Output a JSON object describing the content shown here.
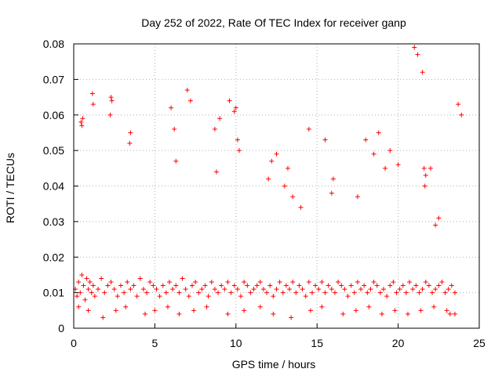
{
  "chart_data": {
    "type": "scatter",
    "title": "Day 252 of 2022, Rate Of TEC Index for receiver ganp",
    "xlabel": "GPS time / hours",
    "ylabel": "ROTI / TECUs",
    "xlim": [
      0,
      25
    ],
    "ylim": [
      0,
      0.08
    ],
    "xticks": [
      "0",
      "5",
      "10",
      "15",
      "20",
      "25"
    ],
    "yticks": [
      "0",
      "0.01",
      "0.02",
      "0.03",
      "0.04",
      "0.05",
      "0.06",
      "0.07",
      "0.08"
    ],
    "grid": true,
    "marker": "+",
    "color": "#ff0000",
    "series": [
      {
        "x": [
          0.1,
          0.2,
          0.3,
          0.4,
          0.5,
          0.6,
          0.7,
          0.8,
          0.9,
          1.0,
          1.1,
          1.2,
          1.3,
          1.5,
          1.7,
          1.9,
          2.1,
          2.3,
          2.5,
          2.7,
          2.9,
          3.1,
          3.3,
          3.5,
          3.7,
          3.9,
          4.1,
          4.3,
          4.5,
          4.7,
          4.9,
          5.1,
          5.3,
          5.5,
          5.7,
          5.9,
          6.1,
          6.3,
          6.5,
          6.7,
          6.9,
          7.1,
          7.3,
          7.5,
          7.7,
          7.9,
          8.1,
          8.3,
          8.5,
          8.7,
          8.9,
          9.1,
          9.3,
          9.5,
          9.7,
          9.9,
          10.1,
          10.3,
          10.5,
          10.7,
          10.9,
          11.1,
          11.3,
          11.5,
          11.7,
          11.9,
          12.1,
          12.3,
          12.5,
          12.7,
          12.9,
          13.1,
          13.3,
          13.5,
          13.7,
          13.9,
          14.1,
          14.3,
          14.5,
          14.7,
          14.9,
          15.1,
          15.3,
          15.5,
          15.7,
          15.9,
          16.1,
          16.3,
          16.5,
          16.7,
          16.9,
          17.1,
          17.3,
          17.5,
          17.7,
          17.9,
          18.1,
          18.3,
          18.5,
          18.7,
          18.9,
          19.1,
          19.3,
          19.5,
          19.7,
          19.9,
          20.1,
          20.3,
          20.5,
          20.7,
          20.9,
          21.1,
          21.3,
          21.5,
          21.7,
          21.9,
          22.1,
          22.3,
          22.5,
          22.7,
          22.9,
          23.1,
          23.3,
          23.5,
          23.7,
          23.9,
          0.5,
          0.55,
          0.45,
          1.15,
          1.2,
          2.3,
          2.35,
          2.25,
          3.45,
          3.5,
          6.0,
          6.2,
          6.3,
          7.0,
          7.2,
          8.7,
          8.8,
          9.0,
          9.6,
          9.9,
          10.0,
          10.1,
          10.2,
          12.0,
          12.2,
          12.5,
          13.0,
          13.2,
          13.5,
          14.0,
          14.5,
          15.5,
          15.9,
          16.0,
          17.5,
          18.0,
          18.5,
          18.8,
          19.2,
          19.5,
          20.0,
          21.0,
          21.2,
          21.5,
          21.6,
          21.65,
          21.7,
          22.0,
          22.3,
          22.5,
          23.0,
          23.5,
          0.3,
          0.9,
          1.8,
          2.6,
          3.2,
          4.4,
          5.0,
          5.8,
          6.5,
          7.4,
          8.2,
          9.5,
          10.5,
          11.5,
          12.3,
          13.4,
          14.6,
          15.3,
          16.6,
          17.4,
          18.2,
          19.0,
          19.8,
          20.6,
          21.4,
          22.2,
          23.2
        ],
        "y": [
          0.011,
          0.009,
          0.013,
          0.01,
          0.015,
          0.012,
          0.008,
          0.014,
          0.011,
          0.013,
          0.01,
          0.012,
          0.009,
          0.011,
          0.014,
          0.01,
          0.012,
          0.013,
          0.011,
          0.009,
          0.012,
          0.01,
          0.013,
          0.011,
          0.012,
          0.009,
          0.014,
          0.011,
          0.01,
          0.013,
          0.012,
          0.011,
          0.009,
          0.012,
          0.01,
          0.013,
          0.011,
          0.012,
          0.01,
          0.014,
          0.011,
          0.009,
          0.012,
          0.013,
          0.01,
          0.011,
          0.012,
          0.009,
          0.013,
          0.011,
          0.01,
          0.012,
          0.011,
          0.013,
          0.01,
          0.012,
          0.011,
          0.009,
          0.013,
          0.012,
          0.01,
          0.011,
          0.012,
          0.013,
          0.011,
          0.01,
          0.012,
          0.009,
          0.011,
          0.013,
          0.01,
          0.012,
          0.011,
          0.013,
          0.01,
          0.012,
          0.011,
          0.009,
          0.013,
          0.01,
          0.012,
          0.011,
          0.013,
          0.01,
          0.012,
          0.011,
          0.01,
          0.013,
          0.012,
          0.011,
          0.009,
          0.012,
          0.01,
          0.013,
          0.011,
          0.012,
          0.01,
          0.011,
          0.013,
          0.012,
          0.01,
          0.011,
          0.009,
          0.012,
          0.013,
          0.01,
          0.011,
          0.012,
          0.01,
          0.013,
          0.011,
          0.012,
          0.01,
          0.011,
          0.013,
          0.012,
          0.01,
          0.011,
          0.012,
          0.013,
          0.01,
          0.011,
          0.012,
          0.01,
          0.063,
          0.06,
          0.057,
          0.059,
          0.058,
          0.066,
          0.063,
          0.065,
          0.064,
          0.06,
          0.052,
          0.055,
          0.062,
          0.056,
          0.047,
          0.067,
          0.064,
          0.056,
          0.044,
          0.059,
          0.064,
          0.061,
          0.062,
          0.053,
          0.05,
          0.042,
          0.047,
          0.049,
          0.04,
          0.045,
          0.037,
          0.034,
          0.056,
          0.053,
          0.038,
          0.042,
          0.037,
          0.053,
          0.049,
          0.055,
          0.045,
          0.05,
          0.046,
          0.079,
          0.077,
          0.072,
          0.045,
          0.04,
          0.043,
          0.045,
          0.029,
          0.031,
          0.005,
          0.004,
          0.006,
          0.005,
          0.003,
          0.005,
          0.006,
          0.004,
          0.005,
          0.006,
          0.004,
          0.005,
          0.006,
          0.004,
          0.005,
          0.006,
          0.004,
          0.003,
          0.005,
          0.006,
          0.004,
          0.005,
          0.006,
          0.004,
          0.005,
          0.004,
          0.005,
          0.006,
          0.004
        ]
      }
    ]
  }
}
